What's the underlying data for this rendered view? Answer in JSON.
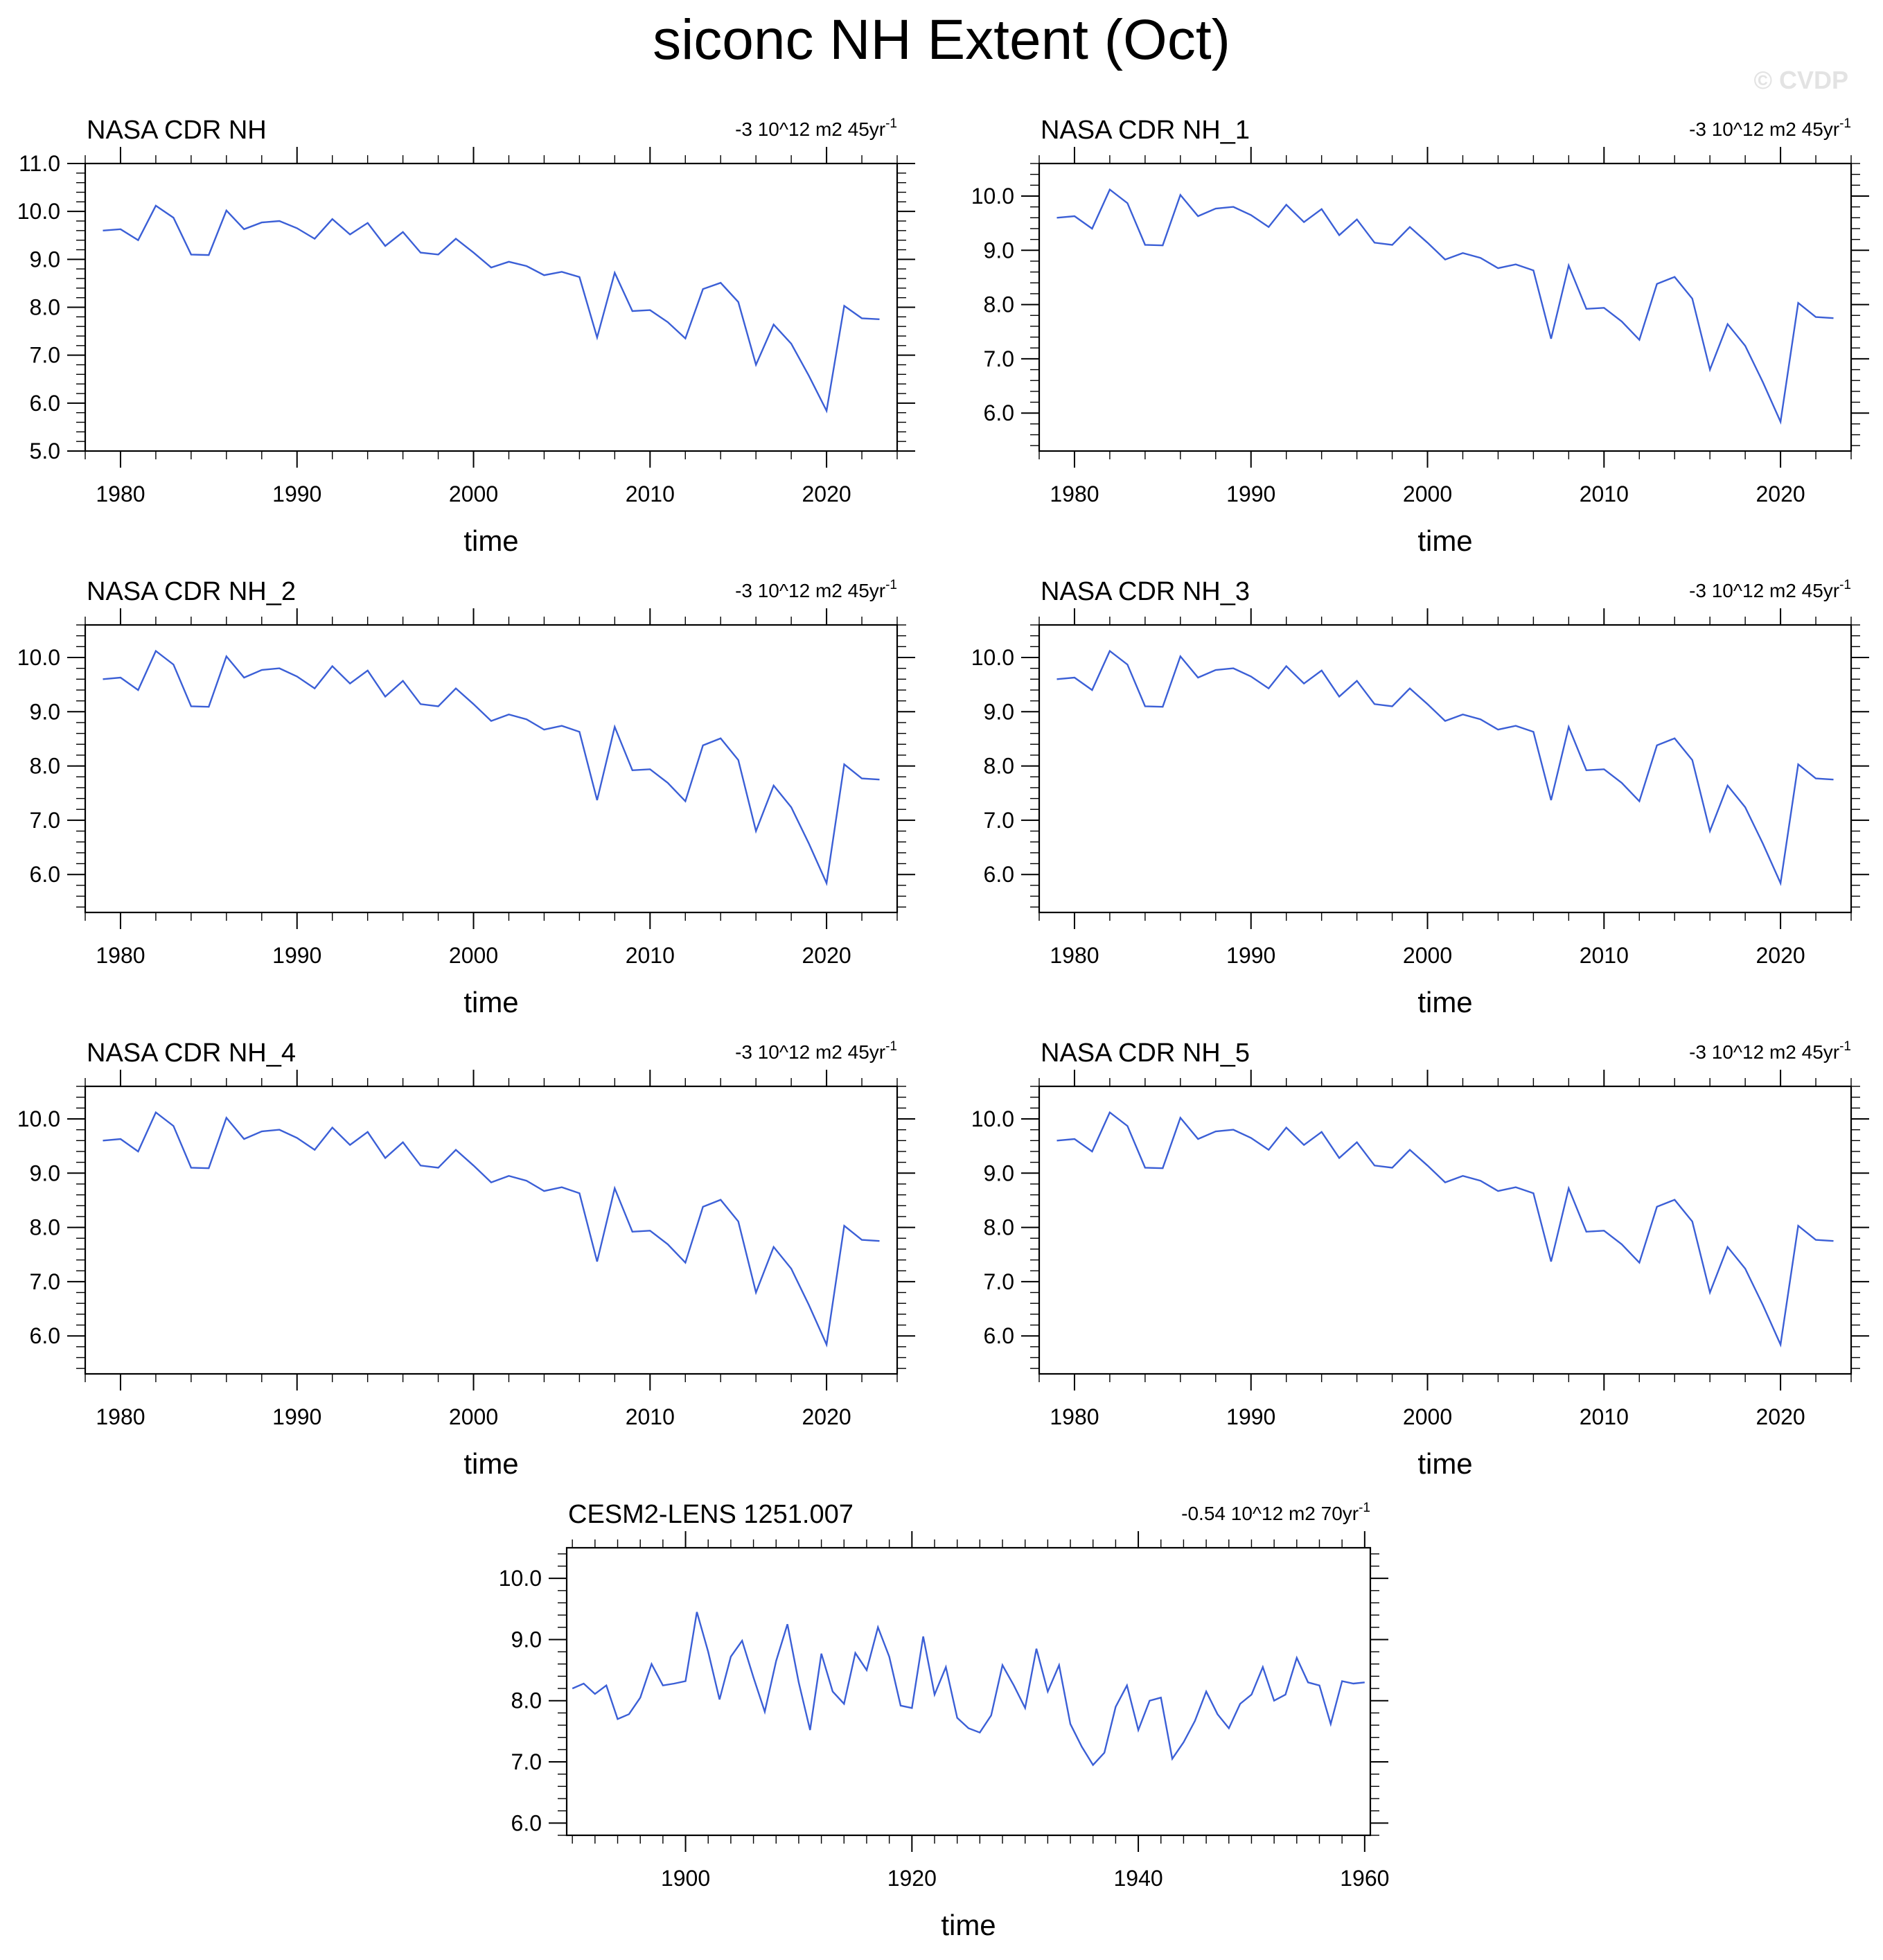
{
  "figure": {
    "title": "siconc NH Extent (Oct)",
    "watermark": "© CVDP",
    "line_color": "#3b5fd6"
  },
  "chart_data": [
    {
      "type": "line",
      "title": "NASA CDR NH",
      "trend_label": "-3 10^12 m2 45yr",
      "trend_exponent": "-1",
      "xlabel": "time",
      "ylabel": "",
      "xlim": [
        1978,
        2024
      ],
      "ylim": [
        5.0,
        11.0
      ],
      "yticks": [
        5.0,
        6.0,
        7.0,
        8.0,
        9.0,
        10.0,
        11.0
      ],
      "ytick_labels": [
        "5.0",
        "6.0",
        "7.0",
        "8.0",
        "9.0",
        "10.0",
        "11.0"
      ],
      "xticks": [
        1980,
        1990,
        2000,
        2010,
        2020
      ],
      "xtick_labels": [
        "1980",
        "1990",
        "2000",
        "2010",
        "2020"
      ],
      "x": [
        1979,
        1980,
        1981,
        1982,
        1983,
        1984,
        1985,
        1986,
        1987,
        1988,
        1989,
        1990,
        1991,
        1992,
        1993,
        1994,
        1995,
        1996,
        1997,
        1998,
        1999,
        2000,
        2001,
        2002,
        2003,
        2004,
        2005,
        2006,
        2007,
        2008,
        2009,
        2010,
        2011,
        2012,
        2013,
        2014,
        2015,
        2016,
        2017,
        2018,
        2019,
        2020,
        2021,
        2022,
        2023
      ],
      "values": [
        9.6,
        9.63,
        9.4,
        10.12,
        9.87,
        9.1,
        9.09,
        10.02,
        9.63,
        9.77,
        9.8,
        9.65,
        9.43,
        9.84,
        9.52,
        9.76,
        9.28,
        9.57,
        9.14,
        9.1,
        9.43,
        9.14,
        8.83,
        8.95,
        8.86,
        8.67,
        8.74,
        8.63,
        7.37,
        8.72,
        7.92,
        7.94,
        7.69,
        7.35,
        8.38,
        8.51,
        8.11,
        6.8,
        7.64,
        7.24,
        6.57,
        5.84,
        8.03,
        7.77,
        7.75
      ]
    },
    {
      "type": "line",
      "title": "NASA CDR NH_1",
      "trend_label": "-3 10^12 m2 45yr",
      "trend_exponent": "-1",
      "xlabel": "time",
      "ylabel": "",
      "xlim": [
        1978,
        2024
      ],
      "ylim": [
        5.3,
        10.6
      ],
      "yticks": [
        6.0,
        7.0,
        8.0,
        9.0,
        10.0
      ],
      "ytick_labels": [
        "6.0",
        "7.0",
        "8.0",
        "9.0",
        "10.0"
      ],
      "xticks": [
        1980,
        1990,
        2000,
        2010,
        2020
      ],
      "xtick_labels": [
        "1980",
        "1990",
        "2000",
        "2010",
        "2020"
      ],
      "x": [
        1979,
        1980,
        1981,
        1982,
        1983,
        1984,
        1985,
        1986,
        1987,
        1988,
        1989,
        1990,
        1991,
        1992,
        1993,
        1994,
        1995,
        1996,
        1997,
        1998,
        1999,
        2000,
        2001,
        2002,
        2003,
        2004,
        2005,
        2006,
        2007,
        2008,
        2009,
        2010,
        2011,
        2012,
        2013,
        2014,
        2015,
        2016,
        2017,
        2018,
        2019,
        2020,
        2021,
        2022,
        2023
      ],
      "values": [
        9.6,
        9.63,
        9.4,
        10.12,
        9.87,
        9.1,
        9.09,
        10.02,
        9.63,
        9.77,
        9.8,
        9.65,
        9.43,
        9.84,
        9.52,
        9.76,
        9.28,
        9.57,
        9.14,
        9.1,
        9.43,
        9.14,
        8.83,
        8.95,
        8.86,
        8.67,
        8.74,
        8.63,
        7.37,
        8.72,
        7.92,
        7.94,
        7.69,
        7.35,
        8.38,
        8.51,
        8.11,
        6.8,
        7.64,
        7.24,
        6.57,
        5.84,
        8.03,
        7.77,
        7.75
      ]
    },
    {
      "type": "line",
      "title": "NASA CDR NH_2",
      "trend_label": "-3 10^12 m2 45yr",
      "trend_exponent": "-1",
      "xlabel": "time",
      "ylabel": "",
      "xlim": [
        1978,
        2024
      ],
      "ylim": [
        5.3,
        10.6
      ],
      "yticks": [
        6.0,
        7.0,
        8.0,
        9.0,
        10.0
      ],
      "ytick_labels": [
        "6.0",
        "7.0",
        "8.0",
        "9.0",
        "10.0"
      ],
      "xticks": [
        1980,
        1990,
        2000,
        2010,
        2020
      ],
      "xtick_labels": [
        "1980",
        "1990",
        "2000",
        "2010",
        "2020"
      ],
      "x": [
        1979,
        1980,
        1981,
        1982,
        1983,
        1984,
        1985,
        1986,
        1987,
        1988,
        1989,
        1990,
        1991,
        1992,
        1993,
        1994,
        1995,
        1996,
        1997,
        1998,
        1999,
        2000,
        2001,
        2002,
        2003,
        2004,
        2005,
        2006,
        2007,
        2008,
        2009,
        2010,
        2011,
        2012,
        2013,
        2014,
        2015,
        2016,
        2017,
        2018,
        2019,
        2020,
        2021,
        2022,
        2023
      ],
      "values": [
        9.6,
        9.63,
        9.4,
        10.12,
        9.87,
        9.1,
        9.09,
        10.02,
        9.63,
        9.77,
        9.8,
        9.65,
        9.43,
        9.84,
        9.52,
        9.76,
        9.28,
        9.57,
        9.14,
        9.1,
        9.43,
        9.14,
        8.83,
        8.95,
        8.86,
        8.67,
        8.74,
        8.63,
        7.37,
        8.72,
        7.92,
        7.94,
        7.69,
        7.35,
        8.38,
        8.51,
        8.11,
        6.8,
        7.64,
        7.24,
        6.57,
        5.84,
        8.03,
        7.77,
        7.75
      ]
    },
    {
      "type": "line",
      "title": "NASA CDR NH_3",
      "trend_label": "-3 10^12 m2 45yr",
      "trend_exponent": "-1",
      "xlabel": "time",
      "ylabel": "",
      "xlim": [
        1978,
        2024
      ],
      "ylim": [
        5.3,
        10.6
      ],
      "yticks": [
        6.0,
        7.0,
        8.0,
        9.0,
        10.0
      ],
      "ytick_labels": [
        "6.0",
        "7.0",
        "8.0",
        "9.0",
        "10.0"
      ],
      "xticks": [
        1980,
        1990,
        2000,
        2010,
        2020
      ],
      "xtick_labels": [
        "1980",
        "1990",
        "2000",
        "2010",
        "2020"
      ],
      "x": [
        1979,
        1980,
        1981,
        1982,
        1983,
        1984,
        1985,
        1986,
        1987,
        1988,
        1989,
        1990,
        1991,
        1992,
        1993,
        1994,
        1995,
        1996,
        1997,
        1998,
        1999,
        2000,
        2001,
        2002,
        2003,
        2004,
        2005,
        2006,
        2007,
        2008,
        2009,
        2010,
        2011,
        2012,
        2013,
        2014,
        2015,
        2016,
        2017,
        2018,
        2019,
        2020,
        2021,
        2022,
        2023
      ],
      "values": [
        9.6,
        9.63,
        9.4,
        10.12,
        9.87,
        9.1,
        9.09,
        10.02,
        9.63,
        9.77,
        9.8,
        9.65,
        9.43,
        9.84,
        9.52,
        9.76,
        9.28,
        9.57,
        9.14,
        9.1,
        9.43,
        9.14,
        8.83,
        8.95,
        8.86,
        8.67,
        8.74,
        8.63,
        7.37,
        8.72,
        7.92,
        7.94,
        7.69,
        7.35,
        8.38,
        8.51,
        8.11,
        6.8,
        7.64,
        7.24,
        6.57,
        5.84,
        8.03,
        7.77,
        7.75
      ]
    },
    {
      "type": "line",
      "title": "NASA CDR NH_4",
      "trend_label": "-3 10^12 m2 45yr",
      "trend_exponent": "-1",
      "xlabel": "time",
      "ylabel": "",
      "xlim": [
        1978,
        2024
      ],
      "ylim": [
        5.3,
        10.6
      ],
      "yticks": [
        6.0,
        7.0,
        8.0,
        9.0,
        10.0
      ],
      "ytick_labels": [
        "6.0",
        "7.0",
        "8.0",
        "9.0",
        "10.0"
      ],
      "xticks": [
        1980,
        1990,
        2000,
        2010,
        2020
      ],
      "xtick_labels": [
        "1980",
        "1990",
        "2000",
        "2010",
        "2020"
      ],
      "x": [
        1979,
        1980,
        1981,
        1982,
        1983,
        1984,
        1985,
        1986,
        1987,
        1988,
        1989,
        1990,
        1991,
        1992,
        1993,
        1994,
        1995,
        1996,
        1997,
        1998,
        1999,
        2000,
        2001,
        2002,
        2003,
        2004,
        2005,
        2006,
        2007,
        2008,
        2009,
        2010,
        2011,
        2012,
        2013,
        2014,
        2015,
        2016,
        2017,
        2018,
        2019,
        2020,
        2021,
        2022,
        2023
      ],
      "values": [
        9.6,
        9.63,
        9.4,
        10.12,
        9.87,
        9.1,
        9.09,
        10.02,
        9.63,
        9.77,
        9.8,
        9.65,
        9.43,
        9.84,
        9.52,
        9.76,
        9.28,
        9.57,
        9.14,
        9.1,
        9.43,
        9.14,
        8.83,
        8.95,
        8.86,
        8.67,
        8.74,
        8.63,
        7.37,
        8.72,
        7.92,
        7.94,
        7.69,
        7.35,
        8.38,
        8.51,
        8.11,
        6.8,
        7.64,
        7.24,
        6.57,
        5.84,
        8.03,
        7.77,
        7.75
      ]
    },
    {
      "type": "line",
      "title": "NASA CDR NH_5",
      "trend_label": "-3 10^12 m2 45yr",
      "trend_exponent": "-1",
      "xlabel": "time",
      "ylabel": "",
      "xlim": [
        1978,
        2024
      ],
      "ylim": [
        5.3,
        10.6
      ],
      "yticks": [
        6.0,
        7.0,
        8.0,
        9.0,
        10.0
      ],
      "ytick_labels": [
        "6.0",
        "7.0",
        "8.0",
        "9.0",
        "10.0"
      ],
      "xticks": [
        1980,
        1990,
        2000,
        2010,
        2020
      ],
      "xtick_labels": [
        "1980",
        "1990",
        "2000",
        "2010",
        "2020"
      ],
      "x": [
        1979,
        1980,
        1981,
        1982,
        1983,
        1984,
        1985,
        1986,
        1987,
        1988,
        1989,
        1990,
        1991,
        1992,
        1993,
        1994,
        1995,
        1996,
        1997,
        1998,
        1999,
        2000,
        2001,
        2002,
        2003,
        2004,
        2005,
        2006,
        2007,
        2008,
        2009,
        2010,
        2011,
        2012,
        2013,
        2014,
        2015,
        2016,
        2017,
        2018,
        2019,
        2020,
        2021,
        2022,
        2023
      ],
      "values": [
        9.6,
        9.63,
        9.4,
        10.12,
        9.87,
        9.1,
        9.09,
        10.02,
        9.63,
        9.77,
        9.8,
        9.65,
        9.43,
        9.84,
        9.52,
        9.76,
        9.28,
        9.57,
        9.14,
        9.1,
        9.43,
        9.14,
        8.83,
        8.95,
        8.86,
        8.67,
        8.74,
        8.63,
        7.37,
        8.72,
        7.92,
        7.94,
        7.69,
        7.35,
        8.38,
        8.51,
        8.11,
        6.8,
        7.64,
        7.24,
        6.57,
        5.84,
        8.03,
        7.77,
        7.75
      ]
    },
    {
      "type": "line",
      "title": "CESM2-LENS 1251.007",
      "trend_label": "-0.54 10^12 m2 70yr",
      "trend_exponent": "-1",
      "xlabel": "time",
      "ylabel": "",
      "xlim": [
        1889.5,
        1960.5
      ],
      "ylim": [
        5.8,
        10.5
      ],
      "yticks": [
        6.0,
        7.0,
        8.0,
        9.0,
        10.0
      ],
      "ytick_labels": [
        "6.0",
        "7.0",
        "8.0",
        "9.0",
        "10.0"
      ],
      "xticks": [
        1900,
        1920,
        1940,
        1960
      ],
      "xtick_labels": [
        "1900",
        "1920",
        "1940",
        "1960"
      ],
      "x": [
        1890,
        1891,
        1892,
        1893,
        1894,
        1895,
        1896,
        1897,
        1898,
        1899,
        1900,
        1901,
        1902,
        1903,
        1904,
        1905,
        1906,
        1907,
        1908,
        1909,
        1910,
        1911,
        1912,
        1913,
        1914,
        1915,
        1916,
        1917,
        1918,
        1919,
        1920,
        1921,
        1922,
        1923,
        1924,
        1925,
        1926,
        1927,
        1928,
        1929,
        1930,
        1931,
        1932,
        1933,
        1934,
        1935,
        1936,
        1937,
        1938,
        1939,
        1940,
        1941,
        1942,
        1943,
        1944,
        1945,
        1946,
        1947,
        1948,
        1949,
        1950,
        1951,
        1952,
        1953,
        1954,
        1955,
        1956,
        1957,
        1958,
        1959,
        1960
      ],
      "values": [
        8.2,
        8.28,
        8.11,
        8.25,
        7.7,
        7.78,
        8.05,
        8.6,
        8.25,
        8.28,
        8.32,
        9.45,
        8.8,
        8.02,
        8.72,
        8.98,
        8.38,
        7.82,
        8.65,
        9.25,
        8.3,
        7.52,
        8.77,
        8.15,
        7.95,
        8.78,
        8.5,
        9.2,
        8.72,
        7.92,
        7.88,
        9.05,
        8.1,
        8.55,
        7.72,
        7.55,
        7.48,
        7.76,
        8.58,
        8.25,
        7.88,
        8.85,
        8.15,
        8.58,
        7.62,
        7.25,
        6.95,
        7.15,
        7.9,
        8.25,
        7.52,
        8.0,
        8.05,
        7.05,
        7.32,
        7.67,
        8.15,
        7.78,
        7.55,
        7.95,
        8.1,
        8.55,
        8.0,
        8.1,
        8.7,
        8.3,
        8.25,
        7.62,
        8.32,
        8.28,
        8.3
      ]
    }
  ]
}
